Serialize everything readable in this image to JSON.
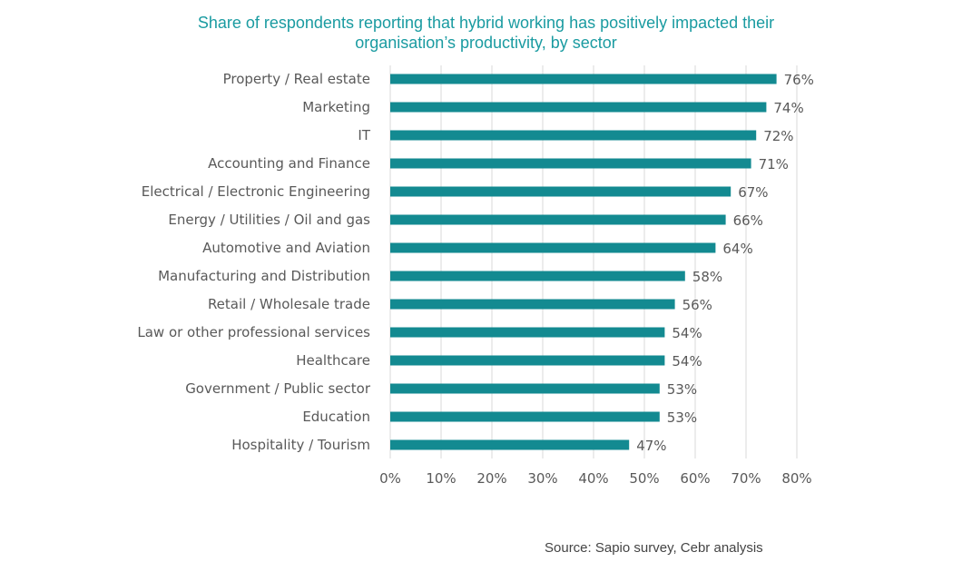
{
  "chart_data": {
    "type": "bar",
    "orientation": "horizontal",
    "title_lines": [
      "Share of respondents reporting that hybrid working has positively impacted their",
      "organisation’s productivity, by sector"
    ],
    "categories": [
      "Property / Real estate",
      "Marketing",
      "IT",
      "Accounting and Finance",
      "Electrical / Electronic Engineering",
      "Energy / Utilities / Oil and gas",
      "Automotive and Aviation",
      "Manufacturing and Distribution",
      "Retail / Wholesale trade",
      "Law or other professional services",
      "Healthcare",
      "Government / Public sector",
      "Education",
      "Hospitality / Tourism"
    ],
    "values": [
      76,
      74,
      72,
      71,
      67,
      66,
      64,
      58,
      56,
      54,
      54,
      53,
      53,
      47
    ],
    "value_labels": [
      "76%",
      "74%",
      "72%",
      "71%",
      "67%",
      "66%",
      "64%",
      "58%",
      "56%",
      "54%",
      "54%",
      "53%",
      "53%",
      "47%"
    ],
    "x_ticks": [
      "0%",
      "10%",
      "20%",
      "30%",
      "40%",
      "50%",
      "60%",
      "70%",
      "80%"
    ],
    "xlim": [
      0,
      80
    ],
    "grid": "vertical",
    "bar_color": "#138a91",
    "source": "Source: Sapio survey, Cebr analysis"
  }
}
